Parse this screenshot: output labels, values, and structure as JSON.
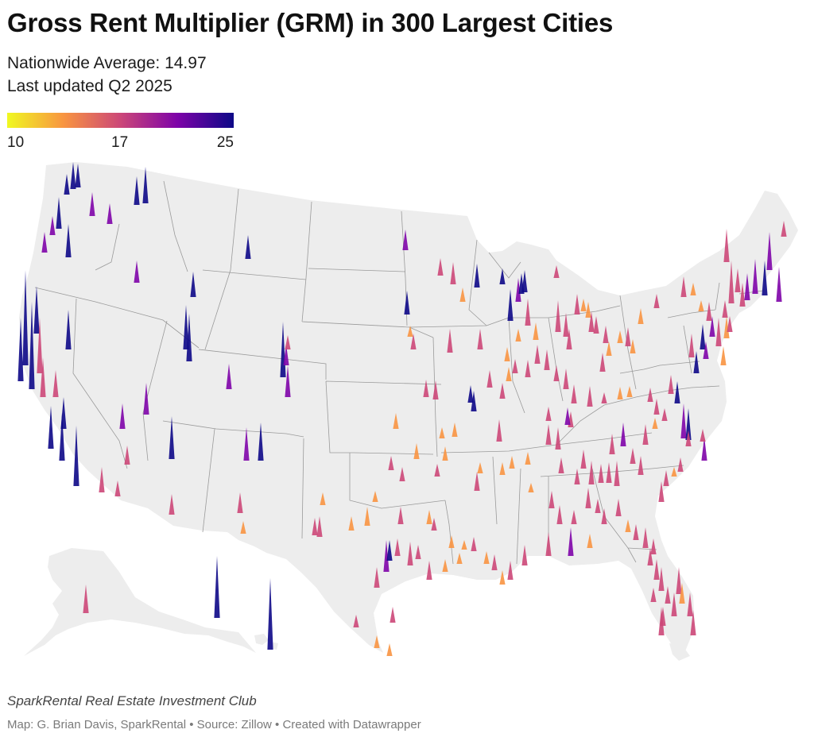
{
  "header": {
    "title": "Gross Rent Multiplier (GRM) in 300 Largest Cities",
    "nationwide_average": "Nationwide Average: 14.97",
    "last_updated": "Last updated Q2 2025"
  },
  "legend": {
    "min_label": "10",
    "mid_label": "17",
    "max_label": "25",
    "min_value": 10,
    "mid_value": 17,
    "max_value": 25,
    "colors": [
      "#f0f921",
      "#f89441",
      "#cc4778",
      "#7e03a8",
      "#0d0887"
    ]
  },
  "map": {
    "land_color": "#ededed",
    "border_color": "#9a9a9a"
  },
  "footer": {
    "club": "SparkRental Real Estate Investment Club",
    "credit": "Map: G. Brian Davis, SparkRental • Source: Zillow • Created with Datawrapper"
  }
}
